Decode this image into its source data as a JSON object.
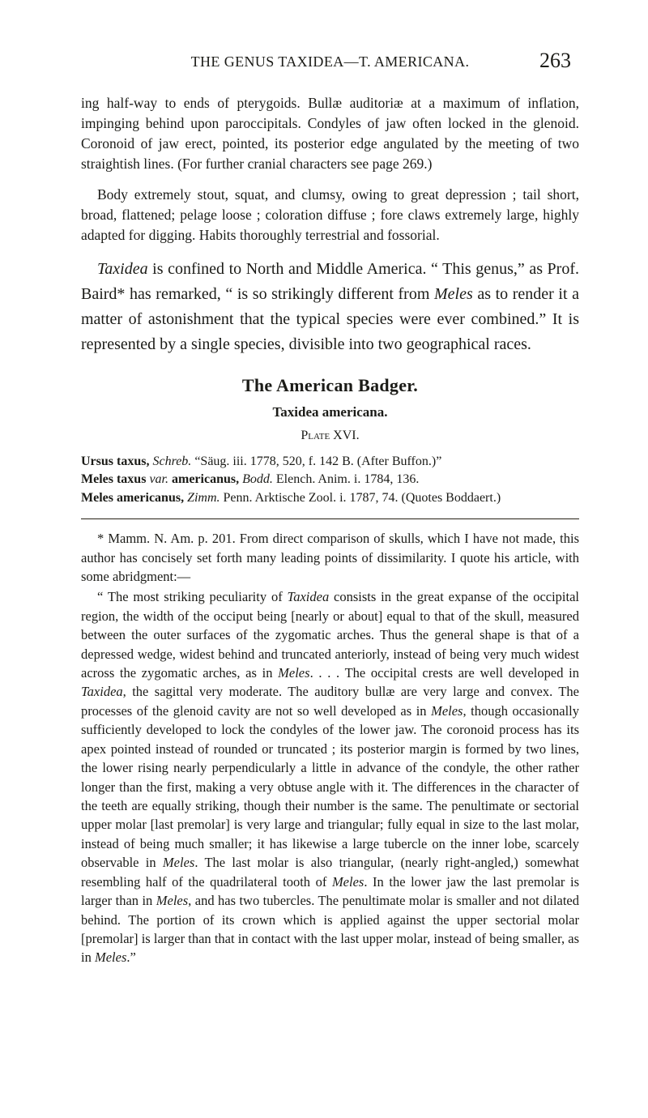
{
  "header": {
    "running_head": "THE GENUS TAXIDEA—T. AMERICANA.",
    "page_number": "263"
  },
  "body": {
    "p1": "ing half-way to ends of pterygoids. Bullæ auditoriæ at a maximum of inflation, impinging behind upon paroccipitals. Condyles of jaw often locked in the glenoid. Coronoid of jaw erect, pointed, its posterior edge angulated by the meeting of two straightish lines. (For further cranial characters see page 269.)",
    "p2": "Body extremely stout, squat, and clumsy, owing to great depression ; tail short, broad, flattened; pelage loose ; coloration diffuse ; fore claws extremely large, highly adapted for digging. Habits thoroughly terrestrial and fossorial.",
    "p3a": "Taxidea",
    "p3b": " is confined to North and Middle America. “ This genus,” as Prof. Baird* has remarked, “ is so strikingly different from ",
    "p3c": "Meles",
    "p3d": " as to render it a matter of astonishment that the typical species were ever combined.” It is represented by a single species, divisible into two geographical races.",
    "heading": "The American Badger.",
    "subhead": "Taxidea americana.",
    "plate": "Plate XVI.",
    "ref1a": "Ursus taxus,",
    "ref1b": " Schreb.",
    "ref1c": " “Säug. iii. 1778, 520, f. 142 B. (After Buffon.)”",
    "ref2a": "Meles taxus",
    "ref2b": " var.",
    "ref2c": " americanus,",
    "ref2d": " Bodd.",
    "ref2e": " Elench. Anim. i. 1784, 136.",
    "ref3a": "Meles americanus,",
    "ref3b": " Zimm.",
    "ref3c": " Penn. Arktische Zool. i. 1787, 74. (Quotes Boddaert.)"
  },
  "footnote": {
    "f1": "* Mamm. N. Am. p. 201. From direct comparison of skulls, which I have not made, this author has concisely set forth many leading points of dissimilarity. I quote his article, with some abridgment:—",
    "f2a": "“ The most striking peculiarity of ",
    "f2b": "Taxidea",
    "f2c": " consists in the great expanse of the occipital region, the width of the occiput being [nearly or about] equal to that of the skull, measured between the outer surfaces of the zygomatic arches. Thus the general shape is that of a depressed wedge, widest behind and truncated anteriorly, instead of being very much widest across the zygomatic arches, as in ",
    "f2d": "Meles",
    "f2e": ". . . . The occipital crests are well developed in ",
    "f2f": "Taxidea",
    "f2g": ", the sagittal very moderate. The auditory bullæ are very large and convex. The processes of the glenoid cavity are not so well developed as in ",
    "f2h": "Meles",
    "f2i": ", though occasionally sufficiently developed to lock the condyles of the lower jaw. The coronoid process has its apex pointed instead of rounded or truncated ; its posterior margin is formed by two lines, the lower rising nearly perpendicularly a little in advance of the condyle, the other rather longer than the first, making a very obtuse angle with it. The differences in the character of the teeth are equally striking, though their number is the same. The penultimate or sectorial upper molar [last premolar] is very large and triangular; fully equal in size to the last molar, instead of being much smaller; it has likewise a large tubercle on the inner lobe, scarcely observable in ",
    "f2j": "Meles",
    "f2k": ". The last molar is also triangular, (nearly right-angled,) somewhat resembling half of the quadrilateral tooth of ",
    "f2l": "Meles",
    "f2m": ". In the lower jaw the last premolar is larger than in ",
    "f2n": "Meles",
    "f2o": ", and has two tubercles. The penultimate molar is smaller and not dilated behind. The portion of its crown which is applied against the upper sectorial molar [premolar] is larger than that in contact with the last upper molar, instead of being smaller, as in ",
    "f2p": "Meles",
    "f2q": ".”"
  }
}
